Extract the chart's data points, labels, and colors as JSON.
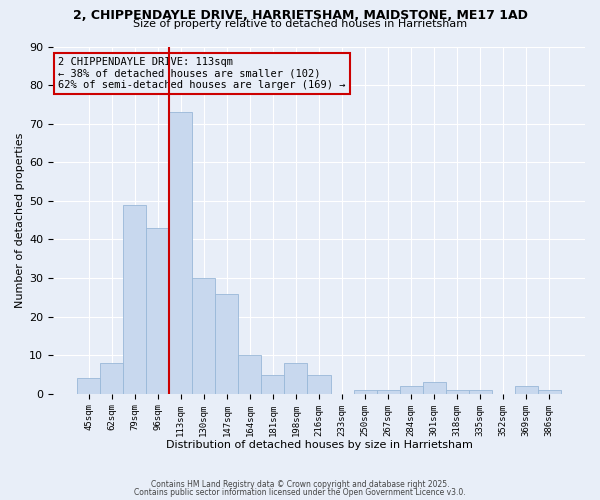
{
  "title": "2, CHIPPENDAYLE DRIVE, HARRIETSHAM, MAIDSTONE, ME17 1AD",
  "subtitle": "Size of property relative to detached houses in Harrietsham",
  "xlabel": "Distribution of detached houses by size in Harrietsham",
  "ylabel": "Number of detached properties",
  "categories": [
    "45sqm",
    "62sqm",
    "79sqm",
    "96sqm",
    "113sqm",
    "130sqm",
    "147sqm",
    "164sqm",
    "181sqm",
    "198sqm",
    "216sqm",
    "233sqm",
    "250sqm",
    "267sqm",
    "284sqm",
    "301sqm",
    "318sqm",
    "335sqm",
    "352sqm",
    "369sqm",
    "386sqm"
  ],
  "values": [
    4,
    8,
    49,
    43,
    73,
    30,
    26,
    10,
    5,
    8,
    5,
    0,
    1,
    1,
    2,
    3,
    1,
    1,
    0,
    2,
    1
  ],
  "bar_color": "#c8d8ee",
  "bar_edgecolor": "#99b8d8",
  "redline_index": 4,
  "annotation_line1": "2 CHIPPENDAYLE DRIVE: 113sqm",
  "annotation_line2": "← 38% of detached houses are smaller (102)",
  "annotation_line3": "62% of semi-detached houses are larger (169) →",
  "annotation_box_edgecolor": "#cc0000",
  "redline_color": "#cc0000",
  "background_color": "#e8eef8",
  "grid_color": "#ffffff",
  "yticks": [
    0,
    10,
    20,
    30,
    40,
    50,
    60,
    70,
    80,
    90
  ],
  "ylim": [
    0,
    90
  ],
  "title_fontsize": 9,
  "subtitle_fontsize": 8,
  "footer_text1": "Contains HM Land Registry data © Crown copyright and database right 2025.",
  "footer_text2": "Contains public sector information licensed under the Open Government Licence v3.0."
}
